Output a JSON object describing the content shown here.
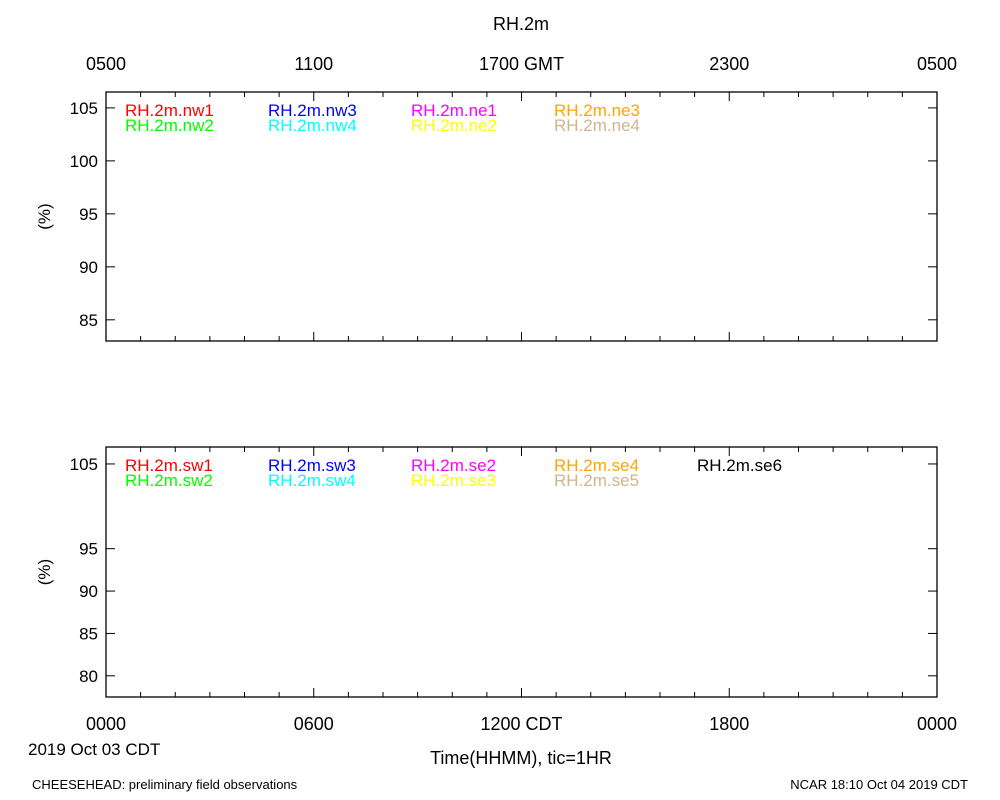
{
  "page": {
    "title": "RH.2m",
    "date_label": "2019 Oct 03 CDT",
    "footer_left": "CHEESEHEAD: preliminary field observations",
    "footer_right": "NCAR 18:10 Oct 04 2019 CDT"
  },
  "chart_data": [
    {
      "type": "line",
      "panel": "top",
      "title": "RH.2m",
      "ylabel": "(%)",
      "xlabel": "",
      "xlim": [
        0,
        24
      ],
      "ylim": [
        83,
        106.5
      ],
      "grid": false,
      "yticks": [
        {
          "value": 85,
          "label": "85"
        },
        {
          "value": 90,
          "label": "90"
        },
        {
          "value": 95,
          "label": "95"
        },
        {
          "value": 100,
          "label": "100"
        },
        {
          "value": 105,
          "label": "105"
        }
      ],
      "xticks_top": [
        {
          "value": 0,
          "label": "0500"
        },
        {
          "value": 6,
          "label": "1100"
        },
        {
          "value": 12,
          "label": "1700 GMT"
        },
        {
          "value": 18,
          "label": "2300"
        },
        {
          "value": 24,
          "label": "0500"
        }
      ],
      "series": [
        {
          "name": "RH.2m.nw1",
          "color": "#ff0000",
          "values": []
        },
        {
          "name": "RH.2m.nw2",
          "color": "#00ff00",
          "values": []
        },
        {
          "name": "RH.2m.nw3",
          "color": "#0000ff",
          "values": []
        },
        {
          "name": "RH.2m.nw4",
          "color": "#00ffff",
          "values": []
        },
        {
          "name": "RH.2m.ne1",
          "color": "#ff00ff",
          "values": []
        },
        {
          "name": "RH.2m.ne2",
          "color": "#ffff00",
          "values": []
        },
        {
          "name": "RH.2m.ne3",
          "color": "#ffa500",
          "values": []
        },
        {
          "name": "RH.2m.ne4",
          "color": "#d2b48c",
          "values": []
        }
      ]
    },
    {
      "type": "line",
      "panel": "bottom",
      "title": "",
      "ylabel": "(%)",
      "xlabel": "Time(HHMM), tic=1HR",
      "xlim": [
        0,
        24
      ],
      "ylim": [
        77.5,
        107
      ],
      "grid": false,
      "yticks": [
        {
          "value": 80,
          "label": "80"
        },
        {
          "value": 85,
          "label": "85"
        },
        {
          "value": 90,
          "label": "90"
        },
        {
          "value": 95,
          "label": "95"
        },
        {
          "value": 105,
          "label": "105"
        }
      ],
      "xticks_bottom": [
        {
          "value": 0,
          "label": "0000"
        },
        {
          "value": 6,
          "label": "0600"
        },
        {
          "value": 12,
          "label": "1200 CDT"
        },
        {
          "value": 18,
          "label": "1800"
        },
        {
          "value": 24,
          "label": "0000"
        }
      ],
      "series": [
        {
          "name": "RH.2m.sw1",
          "color": "#ff0000",
          "values": []
        },
        {
          "name": "RH.2m.sw2",
          "color": "#00ff00",
          "values": []
        },
        {
          "name": "RH.2m.sw3",
          "color": "#0000ff",
          "values": []
        },
        {
          "name": "RH.2m.sw4",
          "color": "#00ffff",
          "values": []
        },
        {
          "name": "RH.2m.se2",
          "color": "#ff00ff",
          "values": []
        },
        {
          "name": "RH.2m.se3",
          "color": "#ffff00",
          "values": []
        },
        {
          "name": "RH.2m.se4",
          "color": "#ffa500",
          "values": []
        },
        {
          "name": "RH.2m.se5",
          "color": "#d2b48c",
          "values": []
        },
        {
          "name": "RH.2m.se6",
          "color": "#000000",
          "values": []
        }
      ]
    }
  ]
}
